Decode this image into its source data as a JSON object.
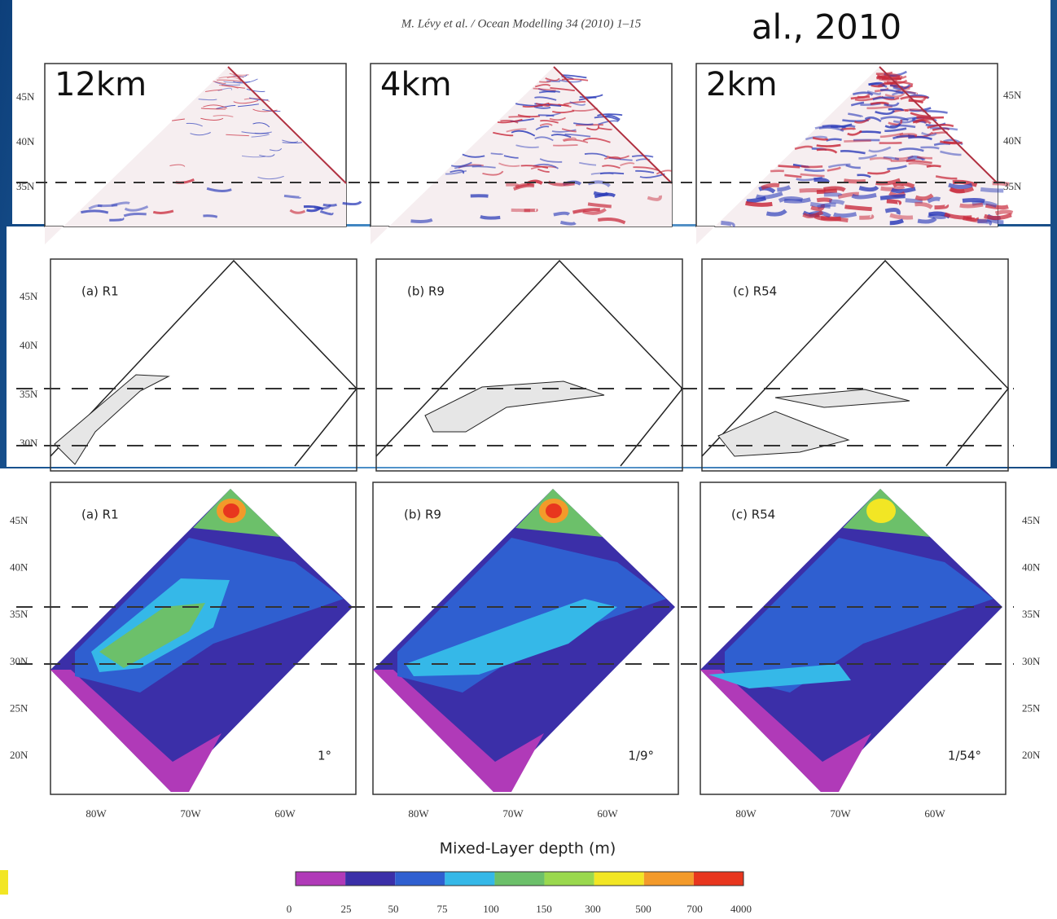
{
  "header": {
    "citation": "M. Lévy et al. / Ocean Modelling 34 (2010) 1–15",
    "overlay": "al., 2010"
  },
  "row1": {
    "panels": [
      {
        "label": "12km"
      },
      {
        "label": "4km"
      },
      {
        "label": "2km"
      }
    ],
    "lat_left": [
      "45N",
      "40N",
      "35N"
    ],
    "lat_right": [
      "45N",
      "40N",
      "35N"
    ]
  },
  "row2": {
    "panels": [
      {
        "label": "(a) R1"
      },
      {
        "label": "(b) R9"
      },
      {
        "label": "(c) R54"
      }
    ],
    "lat_left": [
      "45N",
      "40N",
      "35N",
      "30N"
    ]
  },
  "row3": {
    "panels": [
      {
        "label": "(a) R1",
        "resolution": "1°"
      },
      {
        "label": "(b) R9",
        "resolution": "1/9°"
      },
      {
        "label": "(c) R54",
        "resolution": "1/54°"
      }
    ],
    "lat_left": [
      "45N",
      "40N",
      "35N",
      "30N",
      "25N",
      "20N"
    ],
    "lat_right": [
      "45N",
      "40N",
      "35N",
      "30N",
      "25N",
      "20N"
    ],
    "lon": [
      "80W",
      "70W",
      "60W"
    ]
  },
  "colorbar": {
    "title": "Mixed-Layer depth (m)",
    "ticks": [
      0,
      25,
      50,
      75,
      100,
      150,
      300,
      500,
      700,
      4000
    ],
    "colors": [
      "#b03ab8",
      "#3b2fa8",
      "#2f5fd0",
      "#35b8e8",
      "#6cc06a",
      "#9ad84e",
      "#f2e624",
      "#f39a2a",
      "#e8361e"
    ]
  }
}
